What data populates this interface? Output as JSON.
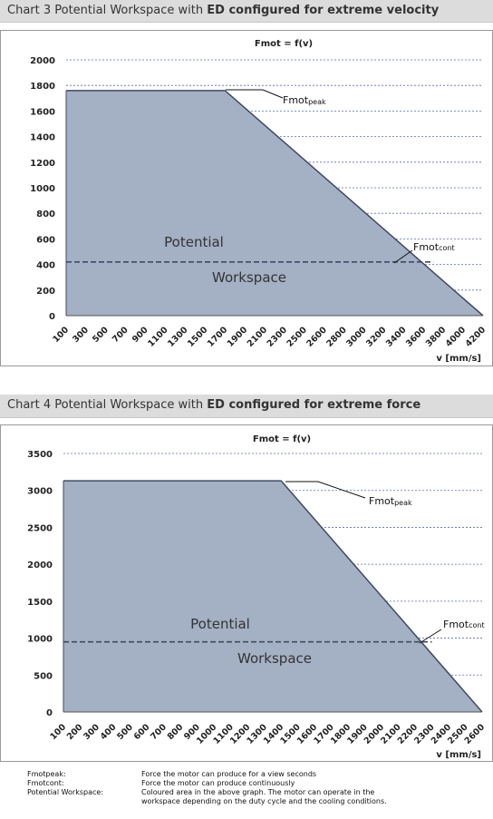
{
  "charts": [
    {
      "header_prefix": "Chart 3  Potential Workspace with ",
      "header_bold": "ED configured for extreme velocity",
      "plot_title": "Fmot = f(v)",
      "xlabel": "v [mm/s]",
      "peak_label": "Fmot",
      "peak_sub": "peak",
      "cont_label": "Fmot",
      "cont_sub": "cont",
      "area_label_1": "Potential",
      "area_label_2": "Workspace"
    },
    {
      "header_prefix": "Chart 4  Potential Workspace with ",
      "header_bold": "ED configured for extreme force",
      "plot_title": "Fmot = f(v)",
      "xlabel": "v [mm/s]",
      "peak_label": "Fmot",
      "peak_sub": "peak",
      "cont_label": "Fmot",
      "cont_sub": "cont",
      "area_label_1": "Potential",
      "area_label_2": "Workspace"
    }
  ],
  "chart_data": [
    {
      "type": "area",
      "title": "Fmot = f(v)",
      "xlabel": "v [mm/s]",
      "ylabel": "",
      "x_ticks": [
        100,
        300,
        500,
        700,
        900,
        1100,
        1300,
        1500,
        1700,
        1900,
        2100,
        2300,
        2500,
        2600,
        2800,
        3000,
        3200,
        3400,
        3600,
        3800,
        4000,
        4200
      ],
      "y_ticks": [
        0,
        200,
        400,
        600,
        800,
        1000,
        1200,
        1400,
        1600,
        1800,
        2000
      ],
      "ylim": [
        0,
        2000
      ],
      "series": [
        {
          "name": "Fmotpeak",
          "x": [
            100,
            1700,
            4200
          ],
          "y": [
            1760,
            1760,
            0
          ]
        },
        {
          "name": "Fmotcont",
          "x": [
            100,
            3700
          ],
          "y": [
            420,
            420
          ]
        }
      ],
      "grid": true,
      "fill_color": "#a4b0c4",
      "line_color": "#3f4a64"
    },
    {
      "type": "area",
      "title": "Fmot = f(v)",
      "xlabel": "v [mm/s]",
      "ylabel": "",
      "x_ticks": [
        100,
        200,
        300,
        400,
        500,
        600,
        700,
        800,
        900,
        1000,
        1100,
        1200,
        1300,
        1400,
        1500,
        1600,
        1700,
        1800,
        1900,
        2000,
        2100,
        2200,
        2300,
        2400,
        2500,
        2600
      ],
      "y_ticks": [
        0,
        500,
        1000,
        1500,
        2000,
        2500,
        3000,
        3500
      ],
      "ylim": [
        0,
        3500
      ],
      "series": [
        {
          "name": "Fmotpeak",
          "x": [
            100,
            1400,
            2600
          ],
          "y": [
            3130,
            3130,
            0
          ]
        },
        {
          "name": "Fmotcont",
          "x": [
            100,
            2300
          ],
          "y": [
            950,
            950
          ]
        }
      ],
      "grid": true,
      "fill_color": "#a4b0c4",
      "line_color": "#3f4a64"
    }
  ],
  "legend": {
    "peak_term": "Fmotpeak:",
    "peak_desc": "Force the motor can produce for a view seconds",
    "cont_term": "Fmotcont:",
    "cont_desc": "Force the motor can produce continuously",
    "ws_term": "Potential Workspace:",
    "ws_desc": "Coloured area in the above graph. The motor can operate in the workspace depending on the duty cycle and the cooling conditions."
  }
}
